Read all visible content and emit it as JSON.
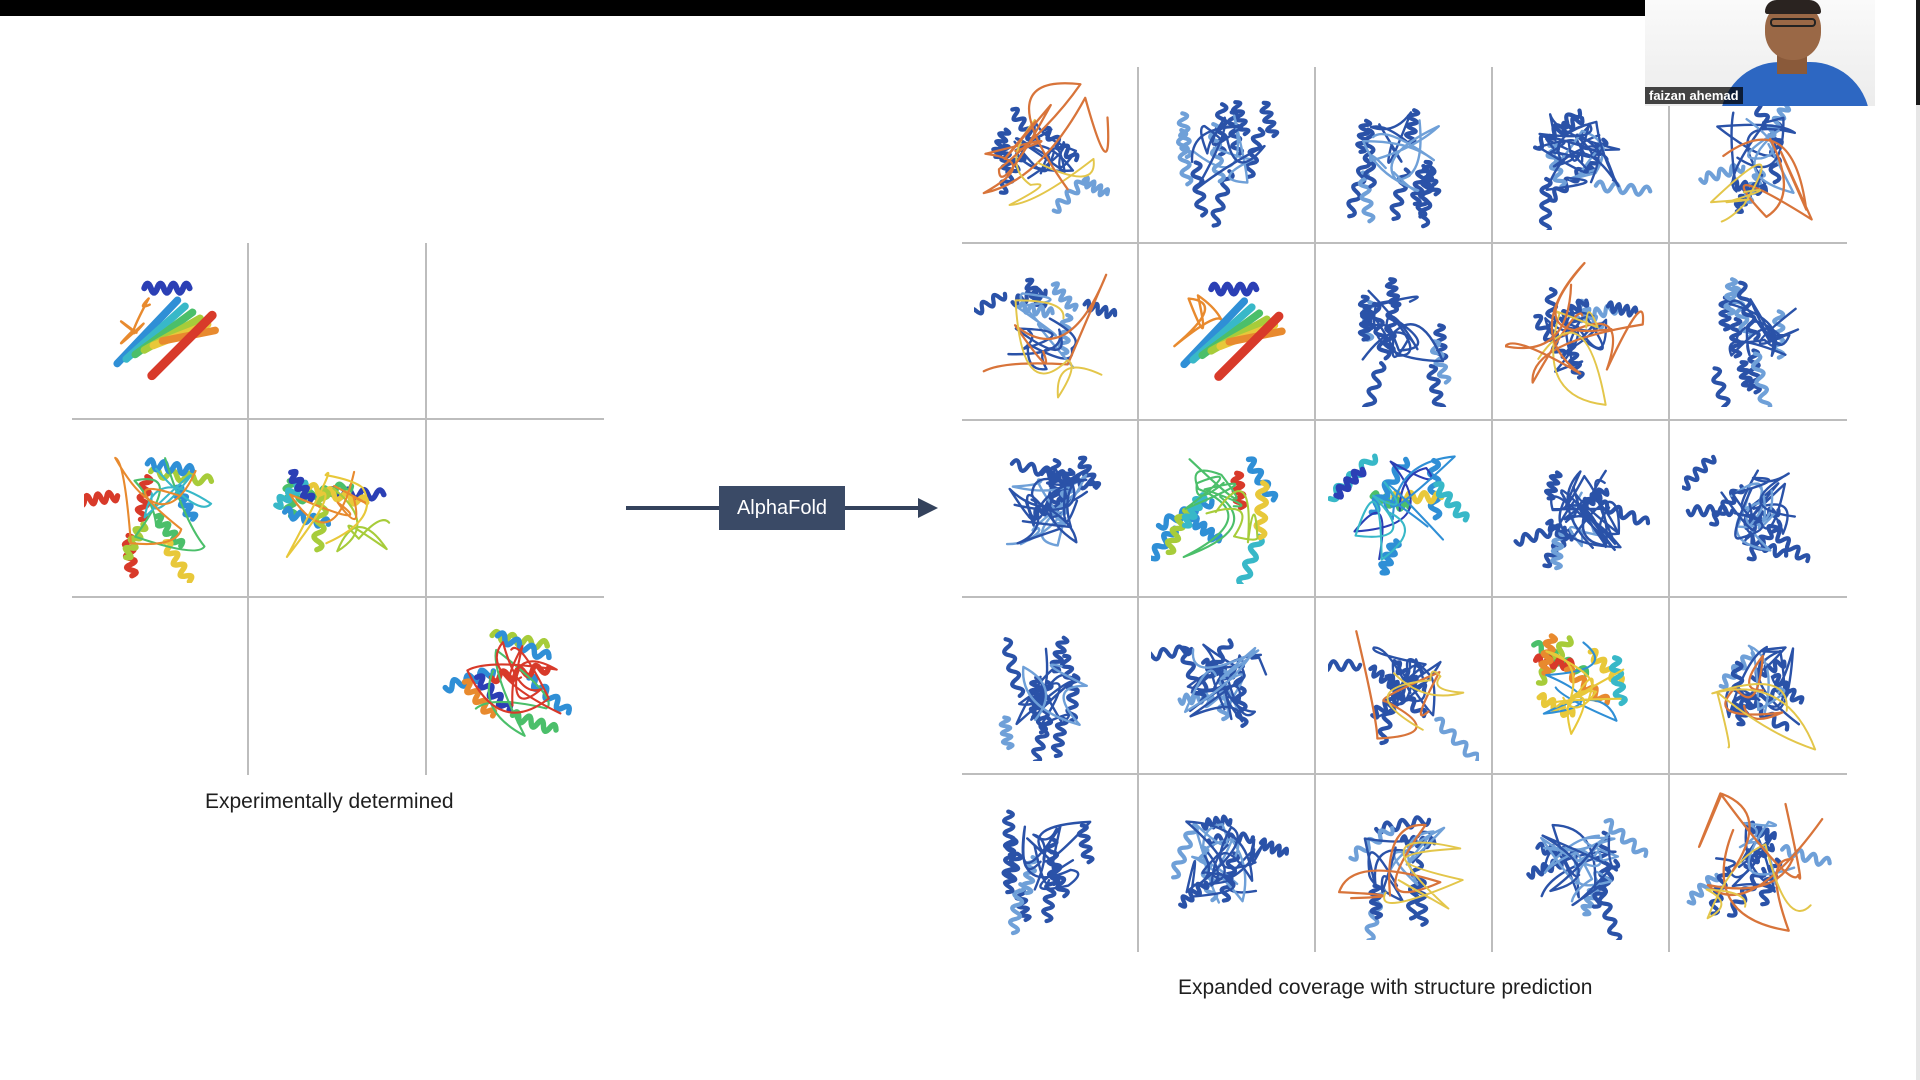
{
  "slide": {
    "model_label": "AlphaFold",
    "left_caption": "Experimentally determined",
    "right_caption": "Expanded coverage with structure prediction"
  },
  "video": {
    "participant_name": "faizan ahemad"
  },
  "experimental_grid": {
    "rows": 3,
    "cols": 3,
    "cells": [
      {
        "structure": "rainbow-beta-barrel"
      },
      {
        "structure": "empty"
      },
      {
        "structure": "empty"
      },
      {
        "structure": "rainbow-alpha-beta"
      },
      {
        "structure": "rainbow-helical"
      },
      {
        "structure": "empty"
      },
      {
        "structure": "empty"
      },
      {
        "structure": "empty"
      },
      {
        "structure": "rainbow-helical-bundle"
      }
    ]
  },
  "predicted_grid": {
    "rows": 5,
    "cols": 5,
    "cells": [
      {
        "structure": "predicted-disordered"
      },
      {
        "structure": "predicted-helical"
      },
      {
        "structure": "predicted-helical"
      },
      {
        "structure": "predicted-globular"
      },
      {
        "structure": "predicted-extended"
      },
      {
        "structure": "predicted-extended"
      },
      {
        "structure": "rainbow-beta-barrel"
      },
      {
        "structure": "predicted-helical"
      },
      {
        "structure": "predicted-disordered"
      },
      {
        "structure": "predicted-helical"
      },
      {
        "structure": "predicted-globular"
      },
      {
        "structure": "rainbow-alpha-beta"
      },
      {
        "structure": "rainbow-helical"
      },
      {
        "structure": "predicted-globular"
      },
      {
        "structure": "predicted-globular"
      },
      {
        "structure": "predicted-helical"
      },
      {
        "structure": "predicted-globular"
      },
      {
        "structure": "predicted-extended"
      },
      {
        "structure": "rainbow-helical-bundle"
      },
      {
        "structure": "predicted-extended"
      },
      {
        "structure": "predicted-helical"
      },
      {
        "structure": "predicted-globular"
      },
      {
        "structure": "predicted-extended"
      },
      {
        "structure": "predicted-globular"
      },
      {
        "structure": "predicted-disordered"
      }
    ]
  },
  "colors": {
    "arrow": "#34425c",
    "label_box": "#3a4a66",
    "confident_blue": "#2a52a8",
    "light_blue": "#6fa0d8",
    "low_conf_orange": "#d8743a",
    "low_conf_yellow": "#e3c64a",
    "grid_line": "#bdbdbd"
  }
}
